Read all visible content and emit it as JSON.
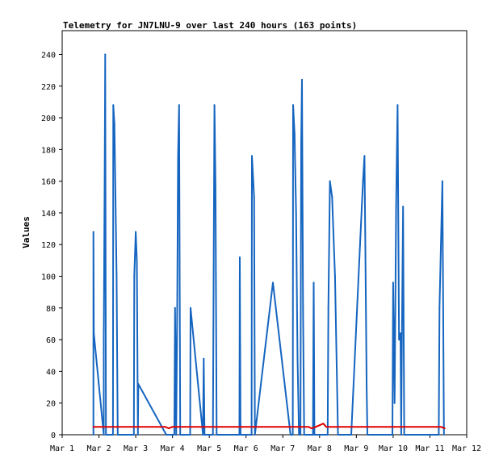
{
  "chart_data": {
    "type": "line",
    "title": "Telemetry for JN7LNU-9 over last 240 hours (163 points)",
    "xlabel": "",
    "ylabel": "Values",
    "x_range_days": [
      1,
      12
    ],
    "x_ticks": [
      "Mar 1",
      "Mar 2",
      "Mar 3",
      "Mar 4",
      "Mar 5",
      "Mar 6",
      "Mar 7",
      "Mar 8",
      "Mar 9",
      "Mar 10",
      "Mar 11",
      "Mar 12"
    ],
    "ylim": [
      0,
      255
    ],
    "y_ticks": [
      "0",
      "20",
      "40",
      "60",
      "80",
      "100",
      "120",
      "140",
      "160",
      "180",
      "200",
      "220",
      "240"
    ],
    "y_tick_values": [
      0,
      20,
      40,
      60,
      80,
      100,
      120,
      140,
      160,
      180,
      200,
      220,
      240
    ],
    "grid": false,
    "series": [
      {
        "color": "#1565c0",
        "points": [
          [
            1.85,
            0
          ],
          [
            1.85,
            128
          ],
          [
            1.86,
            64
          ],
          [
            2.13,
            0
          ],
          [
            2.13,
            60
          ],
          [
            2.16,
            180
          ],
          [
            2.17,
            240
          ],
          [
            2.19,
            0
          ],
          [
            2.38,
            0
          ],
          [
            2.39,
            208
          ],
          [
            2.42,
            196
          ],
          [
            2.45,
            150
          ],
          [
            2.48,
            100
          ],
          [
            2.51,
            0
          ],
          [
            2.95,
            0
          ],
          [
            2.96,
            100
          ],
          [
            3.0,
            128
          ],
          [
            3.03,
            110
          ],
          [
            3.06,
            0
          ],
          [
            3.07,
            32
          ],
          [
            3.83,
            0
          ],
          [
            4.05,
            0
          ],
          [
            4.07,
            80
          ],
          [
            4.1,
            0
          ],
          [
            4.13,
            88
          ],
          [
            4.15,
            175
          ],
          [
            4.18,
            208
          ],
          [
            4.21,
            0
          ],
          [
            4.48,
            0
          ],
          [
            4.49,
            80
          ],
          [
            4.83,
            0
          ],
          [
            4.85,
            48
          ],
          [
            4.87,
            0
          ],
          [
            5.1,
            0
          ],
          [
            5.12,
            104
          ],
          [
            5.14,
            208
          ],
          [
            5.17,
            156
          ],
          [
            5.2,
            0
          ],
          [
            5.82,
            0
          ],
          [
            5.83,
            112
          ],
          [
            5.85,
            0
          ],
          [
            6.15,
            0
          ],
          [
            6.16,
            176
          ],
          [
            6.22,
            150
          ],
          [
            6.24,
            0
          ],
          [
            6.73,
            96
          ],
          [
            7.21,
            0
          ],
          [
            7.27,
            0
          ],
          [
            7.28,
            208
          ],
          [
            7.32,
            190
          ],
          [
            7.36,
            140
          ],
          [
            7.4,
            48
          ],
          [
            7.44,
            0
          ],
          [
            7.48,
            0
          ],
          [
            7.5,
            184
          ],
          [
            7.52,
            224
          ],
          [
            7.55,
            80
          ],
          [
            7.58,
            0
          ],
          [
            7.82,
            0
          ],
          [
            7.84,
            96
          ],
          [
            7.86,
            0
          ],
          [
            8.22,
            0
          ],
          [
            8.24,
            80
          ],
          [
            8.28,
            160
          ],
          [
            8.34,
            150
          ],
          [
            8.42,
            100
          ],
          [
            8.5,
            0
          ],
          [
            8.86,
            0
          ],
          [
            9.1,
            120
          ],
          [
            9.18,
            160
          ],
          [
            9.22,
            176
          ],
          [
            9.28,
            30
          ],
          [
            9.3,
            0
          ],
          [
            9.98,
            0
          ],
          [
            10.0,
            96
          ],
          [
            10.04,
            20
          ],
          [
            10.08,
            145
          ],
          [
            10.12,
            208
          ],
          [
            10.16,
            60
          ],
          [
            10.2,
            64
          ],
          [
            10.22,
            0
          ],
          [
            10.24,
            64
          ],
          [
            10.27,
            144
          ],
          [
            10.3,
            0
          ],
          [
            11.24,
            0
          ],
          [
            11.26,
            80
          ],
          [
            11.3,
            120
          ],
          [
            11.34,
            160
          ],
          [
            11.38,
            0
          ]
        ]
      },
      {
        "color": "#e00000",
        "points": [
          [
            1.85,
            5
          ],
          [
            3.8,
            5
          ],
          [
            3.9,
            4
          ],
          [
            4.0,
            5
          ],
          [
            7.7,
            5
          ],
          [
            7.78,
            4
          ],
          [
            7.9,
            5
          ],
          [
            8.0,
            6
          ],
          [
            8.1,
            7
          ],
          [
            8.18,
            5
          ],
          [
            11.3,
            5
          ],
          [
            11.4,
            4
          ]
        ]
      }
    ]
  }
}
